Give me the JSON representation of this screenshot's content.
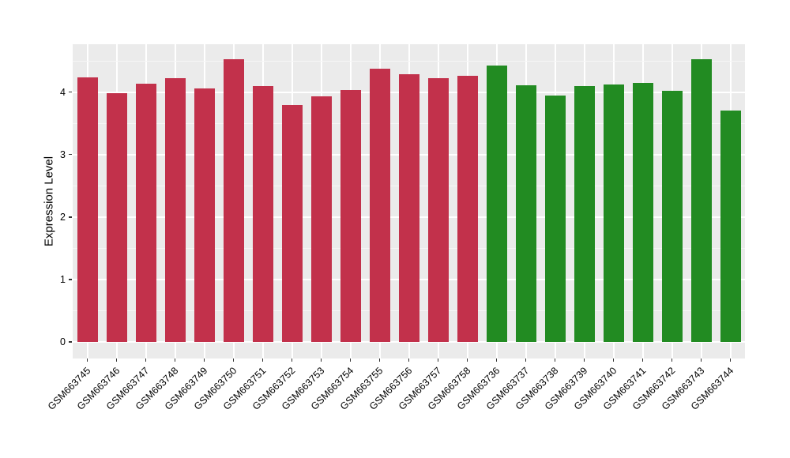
{
  "chart_data": {
    "type": "bar",
    "title": "",
    "xlabel": "",
    "ylabel": "Expression Level",
    "yticks": [
      0,
      1,
      2,
      3,
      4
    ],
    "ytick_labels": [
      "0",
      "1",
      "2",
      "3",
      "4"
    ],
    "yminor_ticks": [
      0.5,
      1.5,
      2.5,
      3.5,
      4.5
    ],
    "ylim": [
      -0.27,
      4.77
    ],
    "grid": "major and minor horizontal white gridlines, major vertical white gridlines at category centers, on gray panel",
    "legend": "none",
    "panel_bg": "#EBEBEB",
    "grid_major_color": "#FFFFFF",
    "grid_minor_color": "#F6F6F6",
    "tick_color": "#333333",
    "text_color": "#000000",
    "group_colors": {
      "group1": "#C2314B",
      "group2": "#228B22"
    },
    "bars": [
      {
        "label": "GSM663745",
        "value": 4.24,
        "group": "group1"
      },
      {
        "label": "GSM663746",
        "value": 3.98,
        "group": "group1"
      },
      {
        "label": "GSM663747",
        "value": 4.14,
        "group": "group1"
      },
      {
        "label": "GSM663748",
        "value": 4.22,
        "group": "group1"
      },
      {
        "label": "GSM663749",
        "value": 4.06,
        "group": "group1"
      },
      {
        "label": "GSM663750",
        "value": 4.53,
        "group": "group1"
      },
      {
        "label": "GSM663751",
        "value": 4.1,
        "group": "group1"
      },
      {
        "label": "GSM663752",
        "value": 3.79,
        "group": "group1"
      },
      {
        "label": "GSM663753",
        "value": 3.93,
        "group": "group1"
      },
      {
        "label": "GSM663754",
        "value": 4.03,
        "group": "group1"
      },
      {
        "label": "GSM663755",
        "value": 4.37,
        "group": "group1"
      },
      {
        "label": "GSM663756",
        "value": 4.29,
        "group": "group1"
      },
      {
        "label": "GSM663757",
        "value": 4.22,
        "group": "group1"
      },
      {
        "label": "GSM663758",
        "value": 4.26,
        "group": "group1"
      },
      {
        "label": "GSM663736",
        "value": 4.42,
        "group": "group2"
      },
      {
        "label": "GSM663737",
        "value": 4.11,
        "group": "group2"
      },
      {
        "label": "GSM663738",
        "value": 3.94,
        "group": "group2"
      },
      {
        "label": "GSM663739",
        "value": 4.1,
        "group": "group2"
      },
      {
        "label": "GSM663740",
        "value": 4.12,
        "group": "group2"
      },
      {
        "label": "GSM663741",
        "value": 4.15,
        "group": "group2"
      },
      {
        "label": "GSM663742",
        "value": 4.02,
        "group": "group2"
      },
      {
        "label": "GSM663743",
        "value": 4.53,
        "group": "group2"
      },
      {
        "label": "GSM663744",
        "value": 3.71,
        "group": "group2"
      }
    ]
  }
}
